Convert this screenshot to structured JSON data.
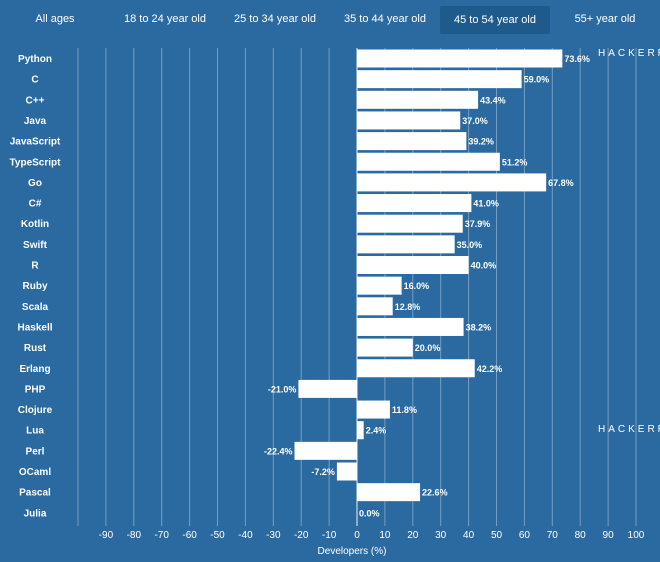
{
  "tabs": [
    {
      "label": "All ages"
    },
    {
      "label": "18 to 24 year old"
    },
    {
      "label": "25 to 34 year old"
    },
    {
      "label": "35 to 44 year old"
    },
    {
      "label": "45 to 54 year old"
    },
    {
      "label": "55+ year old"
    }
  ],
  "active_tab": 4,
  "watermark": "HACKERR",
  "colors": {
    "background": "#2b6aa0",
    "active_tab": "#1e5a8c",
    "bar": "#ffffff",
    "text": "#ffffff",
    "grid": "#ffffff"
  },
  "chart_data": {
    "type": "bar",
    "orientation": "horizontal",
    "categories": [
      "Python",
      "C",
      "C++",
      "Java",
      "JavaScript",
      "TypeScript",
      "Go",
      "C#",
      "Kotlin",
      "Swift",
      "R",
      "Ruby",
      "Scala",
      "Haskell",
      "Rust",
      "Erlang",
      "PHP",
      "Clojure",
      "Lua",
      "Perl",
      "OCaml",
      "Pascal",
      "Julia"
    ],
    "values": [
      73.6,
      59.0,
      43.4,
      37.0,
      39.2,
      51.2,
      67.8,
      41.0,
      37.9,
      35.0,
      40.0,
      16.0,
      12.8,
      38.2,
      20.0,
      42.2,
      -21.0,
      11.8,
      2.4,
      -22.4,
      -7.2,
      22.6,
      0.0
    ],
    "value_labels": [
      "73.6%",
      "59.0%",
      "43.4%",
      "37.0%",
      "39.2%",
      "51.2%",
      "67.8%",
      "41.0%",
      "37.9%",
      "35.0%",
      "40.0%",
      "16.0%",
      "12.8%",
      "38.2%",
      "20.0%",
      "42.2%",
      "-21.0%",
      "11.8%",
      "2.4%",
      "-22.4%",
      "-7.2%",
      "22.6%",
      "0.0%"
    ],
    "xlim": [
      -100,
      100
    ],
    "xticks": [
      -90,
      -80,
      -70,
      -60,
      -50,
      -40,
      -30,
      -20,
      -10,
      0,
      10,
      20,
      30,
      40,
      50,
      60,
      70,
      80,
      90,
      100
    ],
    "xlabel": "Developers (%)",
    "ylabel": "",
    "title": "",
    "grid": true
  }
}
